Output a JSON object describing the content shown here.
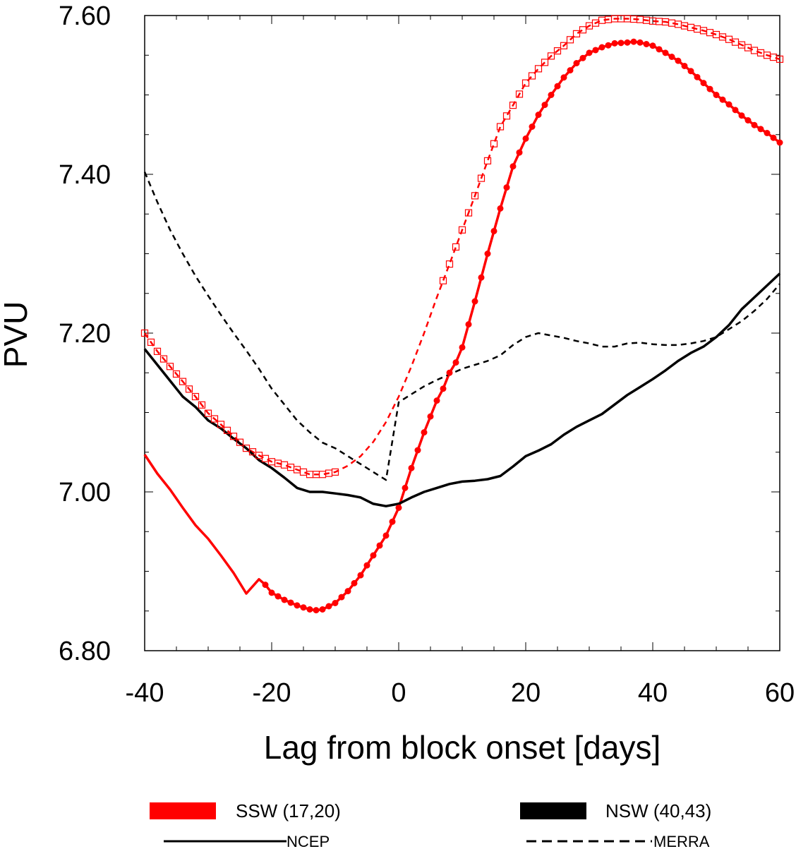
{
  "chart_data": {
    "type": "line",
    "xlabel": "Lag from block onset [days]",
    "ylabel": "PVU",
    "xlim": [
      -40,
      60
    ],
    "ylim": [
      6.8,
      7.6
    ],
    "xticks": [
      -40,
      -20,
      0,
      20,
      40,
      60
    ],
    "xtick_labels": [
      "-40",
      "-20",
      "0",
      "20",
      "40",
      "60"
    ],
    "yticks": [
      6.8,
      7.0,
      7.2,
      7.4,
      7.6
    ],
    "ytick_labels": [
      "6.80",
      "7.00",
      "7.20",
      "7.40",
      "7.60"
    ],
    "grid": false,
    "series": [
      {
        "group": "ssw",
        "dataset": "ncep",
        "color": "#ff0000",
        "dash": "solid",
        "marker": "filled-circle",
        "x": [
          -40,
          -38,
          -36,
          -34,
          -32,
          -30,
          -28,
          -26,
          -24,
          -22,
          -21,
          -20,
          -18,
          -16,
          -14,
          -13,
          -12,
          -10,
          -8,
          -6,
          -4,
          -2,
          0,
          2,
          4,
          6,
          7,
          8,
          9,
          10,
          12,
          14,
          16,
          18,
          20,
          22,
          24,
          26,
          28,
          30,
          32,
          34,
          36,
          37,
          38,
          40,
          42,
          44,
          46,
          48,
          50,
          52,
          54,
          56,
          58,
          60
        ],
        "y": [
          7.047,
          7.023,
          7.003,
          6.98,
          6.958,
          6.941,
          6.92,
          6.898,
          6.872,
          6.89,
          6.883,
          6.873,
          6.864,
          6.857,
          6.852,
          6.851,
          6.852,
          6.86,
          6.875,
          6.895,
          6.92,
          6.945,
          6.98,
          7.03,
          7.075,
          7.115,
          7.13,
          7.15,
          7.163,
          7.182,
          7.24,
          7.3,
          7.357,
          7.41,
          7.445,
          7.475,
          7.5,
          7.522,
          7.54,
          7.553,
          7.56,
          7.565,
          7.566,
          7.567,
          7.566,
          7.562,
          7.553,
          7.543,
          7.53,
          7.515,
          7.5,
          7.488,
          7.474,
          7.462,
          7.452,
          7.44
        ],
        "markers_from_x": -21
      },
      {
        "group": "ssw",
        "dataset": "merra",
        "color": "#ff0000",
        "dash": "dashed",
        "marker": "open-square",
        "x": [
          -40,
          -38,
          -36,
          -34,
          -32,
          -30,
          -28,
          -26,
          -24,
          -22,
          -20,
          -18,
          -16,
          -14,
          -12,
          -10,
          -8,
          -6,
          -4,
          -2,
          0,
          2,
          4,
          6,
          8,
          10,
          12,
          14,
          16,
          18,
          20,
          22,
          24,
          26,
          28,
          30,
          32,
          34,
          36,
          38,
          40,
          42,
          44,
          46,
          48,
          50,
          52,
          54,
          56,
          58,
          60
        ],
        "y": [
          7.2,
          7.177,
          7.158,
          7.139,
          7.12,
          7.099,
          7.085,
          7.07,
          7.055,
          7.046,
          7.038,
          7.034,
          7.028,
          7.022,
          7.022,
          7.025,
          7.033,
          7.045,
          7.063,
          7.088,
          7.12,
          7.158,
          7.2,
          7.245,
          7.287,
          7.33,
          7.373,
          7.417,
          7.46,
          7.487,
          7.515,
          7.533,
          7.549,
          7.562,
          7.577,
          7.587,
          7.594,
          7.596,
          7.596,
          7.595,
          7.593,
          7.592,
          7.589,
          7.585,
          7.581,
          7.576,
          7.57,
          7.563,
          7.556,
          7.55,
          7.545
        ],
        "markers_from_x": -40,
        "markers_to_x": -10,
        "markers_from_x2": 7
      },
      {
        "group": "nsw",
        "dataset": "ncep",
        "color": "#000000",
        "dash": "solid",
        "marker": "none",
        "x": [
          -40,
          -38,
          -36,
          -34,
          -32,
          -30,
          -28,
          -26,
          -24,
          -22,
          -20,
          -18,
          -16,
          -14,
          -12,
          -10,
          -8,
          -6,
          -4,
          -2,
          0,
          2,
          4,
          6,
          8,
          10,
          12,
          14,
          16,
          18,
          20,
          22,
          24,
          26,
          28,
          30,
          32,
          34,
          36,
          38,
          40,
          42,
          44,
          46,
          48,
          50,
          52,
          54,
          56,
          58,
          60
        ],
        "y": [
          7.18,
          7.16,
          7.14,
          7.12,
          7.107,
          7.09,
          7.08,
          7.067,
          7.055,
          7.04,
          7.03,
          7.018,
          7.005,
          7.0,
          7.0,
          6.998,
          6.996,
          6.993,
          6.985,
          6.982,
          6.985,
          6.993,
          7.0,
          7.005,
          7.01,
          7.013,
          7.014,
          7.016,
          7.02,
          7.032,
          7.045,
          7.052,
          7.06,
          7.072,
          7.082,
          7.09,
          7.098,
          7.11,
          7.122,
          7.132,
          7.142,
          7.153,
          7.165,
          7.175,
          7.183,
          7.195,
          7.21,
          7.23,
          7.245,
          7.26,
          7.275
        ]
      },
      {
        "group": "nsw",
        "dataset": "merra",
        "color": "#000000",
        "dash": "dashed",
        "marker": "none",
        "x": [
          -40,
          -38,
          -36,
          -34,
          -32,
          -30,
          -28,
          -26,
          -24,
          -22,
          -20,
          -18,
          -16,
          -14,
          -12,
          -10,
          -8,
          -6,
          -4,
          -2,
          0,
          2,
          4,
          6,
          8,
          10,
          12,
          14,
          16,
          18,
          20,
          22,
          24,
          26,
          28,
          30,
          32,
          34,
          36,
          38,
          40,
          42,
          44,
          46,
          48,
          50,
          52,
          54,
          56,
          58,
          60
        ],
        "y": [
          7.403,
          7.365,
          7.33,
          7.3,
          7.272,
          7.247,
          7.223,
          7.2,
          7.178,
          7.155,
          7.13,
          7.11,
          7.09,
          7.075,
          7.062,
          7.055,
          7.045,
          7.035,
          7.025,
          7.015,
          7.113,
          7.123,
          7.133,
          7.141,
          7.148,
          7.155,
          7.16,
          7.165,
          7.172,
          7.185,
          7.195,
          7.2,
          7.197,
          7.194,
          7.19,
          7.187,
          7.183,
          7.183,
          7.187,
          7.188,
          7.186,
          7.185,
          7.185,
          7.187,
          7.19,
          7.195,
          7.205,
          7.215,
          7.228,
          7.243,
          7.262
        ]
      }
    ],
    "legend": {
      "placement": "below",
      "groups": [
        {
          "label": "SSW (17,20)",
          "color": "#ff0000"
        },
        {
          "label": "NSW (40,43)",
          "color": "#000000"
        }
      ],
      "datasets": [
        {
          "label": "NCEP",
          "dash": "solid"
        },
        {
          "label": "MERRA",
          "dash": "dashed"
        }
      ]
    }
  }
}
